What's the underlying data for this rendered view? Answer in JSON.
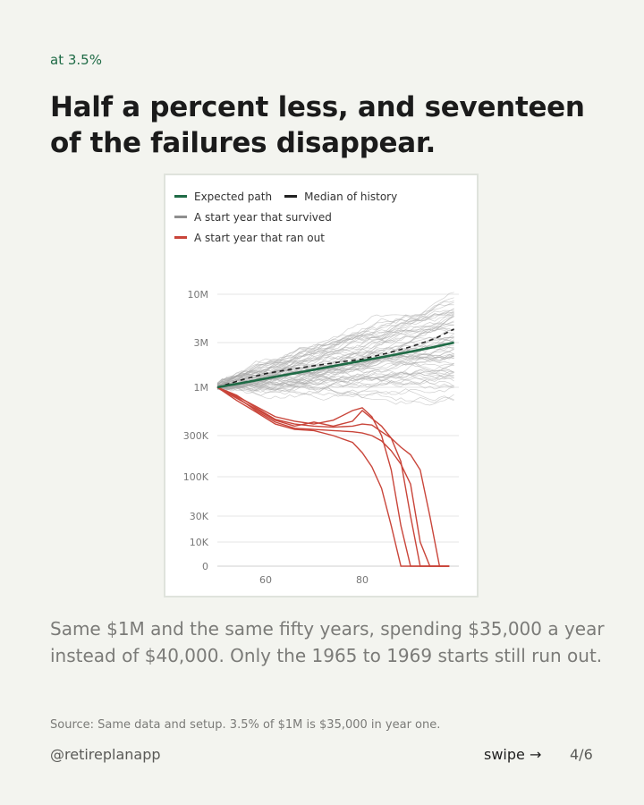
{
  "header": {
    "kicker": "at 3.5%",
    "title": "Half a percent less, and seventeen of the failures disappear."
  },
  "body": {
    "text": "Same $1M and the same fifty years, spending $35,000 a year instead of $40,000. Only the 1965 to 1969 starts still run out."
  },
  "footer": {
    "source": "Source: Same data and setup. 3.5% of $1M is $35,000 in year one.",
    "handle": "@retireplanapp",
    "swipe": "swipe →",
    "page": "4/6"
  },
  "colors": {
    "expected": "#1f6b46",
    "median": "#222222",
    "survived": "#a9a9a9",
    "ranout": "#c9453a",
    "grid": "#e4e4e4"
  },
  "chart_data": {
    "type": "line",
    "xlim": [
      50,
      100
    ],
    "ylim": [
      0,
      30000000
    ],
    "yscale": "log-like",
    "x_ticks": [
      60,
      80
    ],
    "y_ticks": [
      {
        "value": 10000000,
        "label": "10M"
      },
      {
        "value": 3000000,
        "label": "3M"
      },
      {
        "value": 1000000,
        "label": "1M"
      },
      {
        "value": 300000,
        "label": "300K"
      },
      {
        "value": 100000,
        "label": "100K"
      },
      {
        "value": 30000,
        "label": "30K"
      },
      {
        "value": 10000,
        "label": "10K"
      },
      {
        "value": 0,
        "label": "0"
      }
    ],
    "legend": [
      {
        "label": "Expected path",
        "color": "#1f6b46",
        "style": "solid"
      },
      {
        "label": "Median of history",
        "color": "#222222",
        "style": "dashed"
      },
      {
        "label": "A start year that survived",
        "color": "#9a9a9a",
        "style": "solid"
      },
      {
        "label": "A start year that ran out",
        "color": "#c9453a",
        "style": "solid"
      }
    ],
    "series": [
      {
        "name": "Expected path",
        "x": [
          50,
          55,
          60,
          65,
          70,
          75,
          80,
          85,
          90,
          95,
          99
        ],
        "values": [
          1000000,
          1110000,
          1240000,
          1380000,
          1540000,
          1720000,
          1920000,
          2140000,
          2400000,
          2700000,
          3000000
        ]
      },
      {
        "name": "Median of history",
        "x": [
          50,
          55,
          60,
          65,
          70,
          75,
          80,
          85,
          90,
          95,
          99
        ],
        "values": [
          1000000,
          1200000,
          1400000,
          1550000,
          1700000,
          1850000,
          2000000,
          2300000,
          2700000,
          3300000,
          4200000
        ]
      },
      {
        "name": "A start year that ran out",
        "x": [
          50,
          54,
          58,
          62,
          66,
          70,
          74,
          78,
          80,
          82,
          84,
          86,
          88,
          90,
          92,
          94,
          96,
          98
        ],
        "values": [
          1000000,
          800000,
          620000,
          480000,
          430000,
          400000,
          440000,
          560000,
          600000,
          480000,
          300000,
          120000,
          20000,
          0,
          0,
          0,
          0,
          0
        ]
      },
      {
        "name": "A start year that ran out",
        "x": [
          50,
          54,
          58,
          62,
          66,
          70,
          74,
          78,
          80,
          82,
          84,
          86,
          88,
          90,
          92,
          94,
          96,
          98
        ],
        "values": [
          1000000,
          760000,
          580000,
          440000,
          380000,
          420000,
          380000,
          430000,
          560000,
          460000,
          380000,
          280000,
          150000,
          30000,
          0,
          0,
          0,
          0
        ]
      },
      {
        "name": "A start year that ran out",
        "x": [
          50,
          54,
          58,
          62,
          66,
          70,
          74,
          78,
          80,
          82,
          84,
          86,
          88,
          90,
          92,
          94,
          96,
          98
        ],
        "values": [
          1000000,
          780000,
          560000,
          420000,
          360000,
          350000,
          340000,
          330000,
          320000,
          300000,
          260000,
          200000,
          140000,
          80000,
          10000,
          0,
          0,
          0
        ]
      },
      {
        "name": "A start year that ran out",
        "x": [
          50,
          54,
          58,
          62,
          66,
          70,
          74,
          78,
          80,
          82,
          84,
          86,
          88,
          90,
          92,
          94,
          96,
          98
        ],
        "values": [
          1000000,
          720000,
          540000,
          400000,
          350000,
          340000,
          300000,
          250000,
          190000,
          130000,
          70000,
          20000,
          0,
          0,
          0,
          0,
          0,
          0
        ]
      },
      {
        "name": "A start year that ran out",
        "x": [
          50,
          54,
          58,
          62,
          66,
          70,
          74,
          78,
          80,
          82,
          84,
          86,
          88,
          90,
          92,
          94,
          96,
          98
        ],
        "values": [
          1000000,
          820000,
          600000,
          450000,
          400000,
          380000,
          370000,
          380000,
          400000,
          390000,
          330000,
          280000,
          220000,
          180000,
          120000,
          30000,
          0,
          0
        ]
      }
    ]
  }
}
